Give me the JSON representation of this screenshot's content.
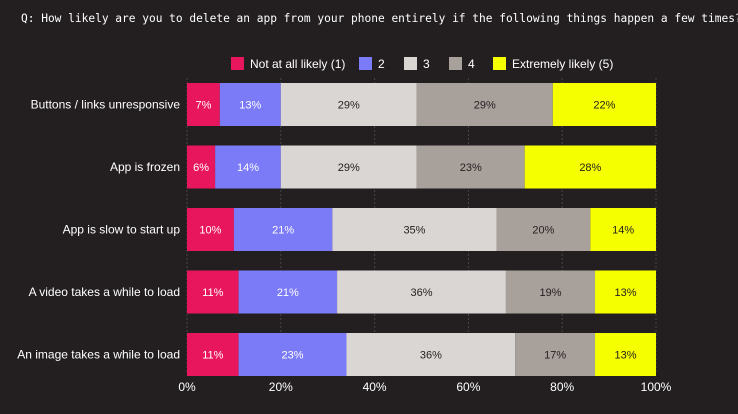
{
  "question": "Q: How likely are you to delete an app from your phone entirely if the following things happen a few times?",
  "chart_data": {
    "type": "bar",
    "orientation": "horizontal",
    "stacked": true,
    "title": "Q: How likely are you to delete an app from your phone entirely if the following things happen a few times?",
    "categories": [
      "Buttons / links unresponsive",
      "App is frozen",
      "App is slow to start up",
      "A video takes a while to load",
      "An image takes a while to load"
    ],
    "series": [
      {
        "name": "Not at all likely (1)",
        "color": "#e8175d",
        "values": [
          7,
          6,
          10,
          11,
          11
        ]
      },
      {
        "name": "2",
        "color": "#7b7bf7",
        "values": [
          13,
          14,
          21,
          21,
          23
        ]
      },
      {
        "name": "3",
        "color": "#d9d6d3",
        "values": [
          29,
          29,
          35,
          36,
          36
        ]
      },
      {
        "name": "4",
        "color": "#a8a09b",
        "values": [
          29,
          23,
          20,
          19,
          17
        ]
      },
      {
        "name": "Extremely likely (5)",
        "color": "#f5ff00",
        "values": [
          22,
          28,
          14,
          13,
          13
        ]
      }
    ],
    "xlim": [
      0,
      100
    ],
    "xticks": [
      "0%",
      "20%",
      "40%",
      "60%",
      "80%",
      "100%"
    ],
    "grid": true,
    "legend": "top",
    "value_suffix": "%"
  }
}
